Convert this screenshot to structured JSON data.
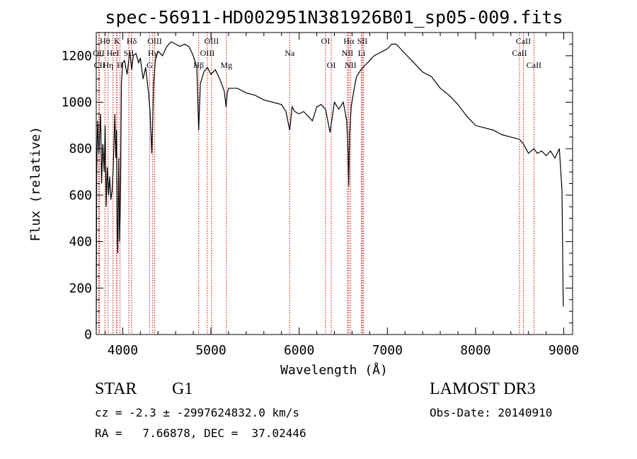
{
  "chart_data": {
    "type": "line",
    "title": "spec-56911-HD002951N381926B01_sp05-009.fits",
    "xlabel": "Wavelength (Å)",
    "ylabel": "Flux (relative)",
    "xlim": [
      3700,
      9100
    ],
    "ylim": [
      0,
      1300
    ],
    "x_ticks": [
      4000,
      5000,
      6000,
      7000,
      8000,
      9000
    ],
    "y_ticks": [
      0,
      200,
      400,
      600,
      800,
      1000,
      1200
    ],
    "x_tick_labels": [
      "4000",
      "5000",
      "6000",
      "7000",
      "8000",
      "9000"
    ],
    "y_tick_labels": [
      "0",
      "200",
      "400",
      "600",
      "800",
      "1000",
      "1200"
    ],
    "series": [
      {
        "name": "spectrum",
        "x": [
          3700,
          3705,
          3715,
          3730,
          3750,
          3760,
          3775,
          3790,
          3800,
          3812,
          3825,
          3840,
          3852,
          3865,
          3880,
          3890,
          3900,
          3910,
          3922,
          3930,
          3938,
          3945,
          3955,
          3965,
          3975,
          3985,
          4000,
          4020,
          4050,
          4080,
          4102,
          4120,
          4150,
          4180,
          4200,
          4230,
          4260,
          4290,
          4310,
          4330,
          4340,
          4350,
          4370,
          4400,
          4450,
          4500,
          4550,
          4600,
          4650,
          4700,
          4750,
          4800,
          4840,
          4861,
          4880,
          4920,
          4960,
          5000,
          5050,
          5100,
          5150,
          5172,
          5184,
          5200,
          5300,
          5400,
          5500,
          5600,
          5700,
          5800,
          5850,
          5893,
          5920,
          5950,
          6000,
          6050,
          6100,
          6150,
          6200,
          6250,
          6300,
          6350,
          6400,
          6450,
          6500,
          6540,
          6555,
          6563,
          6572,
          6590,
          6620,
          6650,
          6700,
          6750,
          6800,
          6850,
          6900,
          6950,
          7000,
          7050,
          7100,
          7150,
          7200,
          7300,
          7400,
          7500,
          7600,
          7700,
          7800,
          7900,
          8000,
          8100,
          8200,
          8300,
          8400,
          8500,
          8542,
          8600,
          8662,
          8700,
          8750,
          8800,
          8850,
          8900,
          8950,
          8980,
          8990,
          8995
        ],
        "values": [
          20,
          700,
          920,
          780,
          950,
          650,
          820,
          700,
          900,
          550,
          720,
          600,
          680,
          580,
          620,
          700,
          800,
          950,
          760,
          880,
          430,
          350,
          760,
          400,
          600,
          1080,
          1170,
          1180,
          1120,
          1220,
          1140,
          1200,
          1210,
          1170,
          1190,
          1100,
          1150,
          1050,
          960,
          780,
          920,
          1080,
          1180,
          1220,
          1200,
          1240,
          1260,
          1250,
          1240,
          1250,
          1240,
          1200,
          1150,
          880,
          1080,
          1130,
          1150,
          1120,
          1140,
          1100,
          1050,
          980,
          1040,
          1060,
          1060,
          1040,
          1030,
          1010,
          1000,
          990,
          960,
          880,
          980,
          960,
          950,
          960,
          940,
          920,
          980,
          990,
          970,
          870,
          1000,
          970,
          1000,
          920,
          780,
          640,
          860,
          980,
          1050,
          1110,
          1140,
          1160,
          1180,
          1200,
          1210,
          1220,
          1230,
          1250,
          1250,
          1230,
          1210,
          1170,
          1130,
          1110,
          1060,
          1030,
          990,
          940,
          900,
          890,
          880,
          860,
          850,
          840,
          820,
          780,
          800,
          780,
          790,
          770,
          790,
          760,
          800,
          620,
          250,
          120
        ]
      }
    ],
    "line_markers": [
      {
        "label": "Hθ",
        "wavelength": 3798
      },
      {
        "label": "OII",
        "wavelength": 3727
      },
      {
        "label": "CII",
        "wavelength": 3737
      },
      {
        "label": "Hη",
        "wavelength": 3835
      },
      {
        "label": "HeI",
        "wavelength": 3889
      },
      {
        "label": "K",
        "wavelength": 3934
      },
      {
        "label": "SII",
        "wavelength": 3930
      },
      {
        "label": "H",
        "wavelength": 3969
      },
      {
        "label": "Hδ",
        "wavelength": 4102
      },
      {
        "label": "SII",
        "wavelength": 4069
      },
      {
        "label": "OIII",
        "wavelength": 4363
      },
      {
        "label": "Hγ",
        "wavelength": 4340
      },
      {
        "label": "G",
        "wavelength": 4305
      },
      {
        "label": "Hβ",
        "wavelength": 4861
      },
      {
        "label": "OIII",
        "wavelength": 4959
      },
      {
        "label": "OIII",
        "wavelength": 5007
      },
      {
        "label": "Mg",
        "wavelength": 5175
      },
      {
        "label": "Na",
        "wavelength": 5893
      },
      {
        "label": "OI",
        "wavelength": 6300
      },
      {
        "label": "OI",
        "wavelength": 6364
      },
      {
        "label": "Hα",
        "wavelength": 6563
      },
      {
        "label": "NII",
        "wavelength": 6548
      },
      {
        "label": "NII",
        "wavelength": 6583
      },
      {
        "label": "SII",
        "wavelength": 6716
      },
      {
        "label": "SII",
        "wavelength": 6731
      },
      {
        "label": "Li",
        "wavelength": 6708
      },
      {
        "label": "CaII",
        "wavelength": 8498
      },
      {
        "label": "CaII",
        "wavelength": 8542
      },
      {
        "label": "CaII",
        "wavelength": 8662
      }
    ],
    "line_label_rows": [
      {
        "text": "Hθ",
        "wavelength": 3798,
        "row": 1
      },
      {
        "text": "K",
        "wavelength": 3934,
        "row": 1
      },
      {
        "text": "Hδ",
        "wavelength": 4102,
        "row": 1
      },
      {
        "text": "OIII",
        "wavelength": 4363,
        "row": 1
      },
      {
        "text": "OIII",
        "wavelength": 5007,
        "row": 1
      },
      {
        "text": "OI",
        "wavelength": 6300,
        "row": 1
      },
      {
        "text": "Hα",
        "wavelength": 6563,
        "row": 1
      },
      {
        "text": "SII",
        "wavelength": 6716,
        "row": 1
      },
      {
        "text": "CaII",
        "wavelength": 8542,
        "row": 1
      },
      {
        "text": "OII",
        "wavelength": 3727,
        "row": 2
      },
      {
        "text": "HeI",
        "wavelength": 3889,
        "row": 2
      },
      {
        "text": "SII",
        "wavelength": 4069,
        "row": 2
      },
      {
        "text": "Hγ",
        "wavelength": 4340,
        "row": 2
      },
      {
        "text": "OIII",
        "wavelength": 4959,
        "row": 2
      },
      {
        "text": "Na",
        "wavelength": 5893,
        "row": 2
      },
      {
        "text": "NII",
        "wavelength": 6548,
        "row": 2
      },
      {
        "text": "Li",
        "wavelength": 6708,
        "row": 2
      },
      {
        "text": "CaII",
        "wavelength": 8498,
        "row": 2
      },
      {
        "text": "CII",
        "wavelength": 3737,
        "row": 3
      },
      {
        "text": "Hη",
        "wavelength": 3835,
        "row": 3
      },
      {
        "text": "H",
        "wavelength": 3969,
        "row": 3
      },
      {
        "text": "G",
        "wavelength": 4305,
        "row": 3
      },
      {
        "text": "Hβ",
        "wavelength": 4861,
        "row": 3
      },
      {
        "text": "Mg",
        "wavelength": 5175,
        "row": 3
      },
      {
        "text": "OI",
        "wavelength": 6364,
        "row": 3
      },
      {
        "text": "NII",
        "wavelength": 6583,
        "row": 3
      },
      {
        "text": "CaII",
        "wavelength": 8662,
        "row": 3
      }
    ],
    "marker_color": "#cc0000"
  },
  "info": {
    "object_class": "STAR",
    "subclass": "G1",
    "survey": "LAMOST DR3",
    "cz_line": "cz = -2.3 ± -2997624832.0 km/s",
    "obs_date_line": "Obs-Date: 20140910",
    "radec_line": "RA =   7.66878, DEC =  37.02446"
  }
}
